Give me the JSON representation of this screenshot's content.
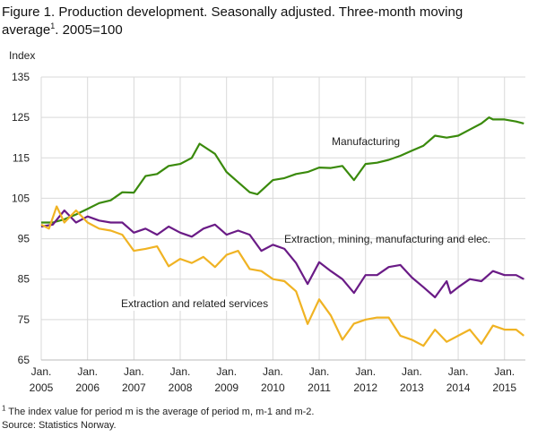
{
  "title": {
    "line1": "Figure 1. Production development. Seasonally adjusted. Three-month moving",
    "line2_pre": "average",
    "line2_sup": "1",
    "line2_post": ". 2005=100"
  },
  "footnote": {
    "sup": "1",
    "text": " The index value for period m is the average of period m, m-1 and m-2."
  },
  "source": "Source: Statistics Norway.",
  "chart_data": {
    "type": "line",
    "title": "Figure 1. Production development. Seasonally adjusted. Three-month moving average1. 2005=100",
    "ylabel": "Index",
    "xlabel": "",
    "ylim": [
      65,
      135
    ],
    "yticks": [
      65,
      75,
      85,
      95,
      105,
      115,
      125,
      135
    ],
    "xlim": [
      "2005-01",
      "2015-06"
    ],
    "xticks": [
      {
        "top": "Jan.",
        "bottom": "2005",
        "date": "2005-01"
      },
      {
        "top": "Jan.",
        "bottom": "2006",
        "date": "2006-01"
      },
      {
        "top": "Jan.",
        "bottom": "2007",
        "date": "2007-01"
      },
      {
        "top": "Jan.",
        "bottom": "2008",
        "date": "2008-01"
      },
      {
        "top": "Jan.",
        "bottom": "2009",
        "date": "2009-01"
      },
      {
        "top": "Jan.",
        "bottom": "2010",
        "date": "2010-01"
      },
      {
        "top": "Jan.",
        "bottom": "2011",
        "date": "2011-01"
      },
      {
        "top": "Jan.",
        "bottom": "2012",
        "date": "2012-01"
      },
      {
        "top": "Jan.",
        "bottom": "2013",
        "date": "2013-01"
      },
      {
        "top": "Jan.",
        "bottom": "2014",
        "date": "2014-01"
      },
      {
        "top": "Jan.",
        "bottom": "2015",
        "date": "2015-01"
      }
    ],
    "grid": true,
    "legend": "inline labels",
    "series": [
      {
        "name": "Manufacturing",
        "color": "#3a8a0c",
        "points": [
          [
            "2005-01",
            99
          ],
          [
            "2005-04",
            99
          ],
          [
            "2005-07",
            99.8
          ],
          [
            "2005-10",
            101
          ],
          [
            "2006-01",
            102.4
          ],
          [
            "2006-04",
            103.8
          ],
          [
            "2006-07",
            104.5
          ],
          [
            "2006-10",
            106.5
          ],
          [
            "2007-01",
            106.4
          ],
          [
            "2007-04",
            110.5
          ],
          [
            "2007-07",
            111
          ],
          [
            "2007-10",
            113
          ],
          [
            "2008-01",
            113.5
          ],
          [
            "2008-04",
            115
          ],
          [
            "2008-06",
            118.5
          ],
          [
            "2008-10",
            116
          ],
          [
            "2009-01",
            111.5
          ],
          [
            "2009-04",
            109
          ],
          [
            "2009-07",
            106.5
          ],
          [
            "2009-09",
            106
          ],
          [
            "2010-01",
            109.5
          ],
          [
            "2010-04",
            110
          ],
          [
            "2010-07",
            111
          ],
          [
            "2010-10",
            111.5
          ],
          [
            "2011-01",
            112.6
          ],
          [
            "2011-04",
            112.5
          ],
          [
            "2011-07",
            113
          ],
          [
            "2011-10",
            109.5
          ],
          [
            "2012-01",
            113.5
          ],
          [
            "2012-04",
            113.8
          ],
          [
            "2012-07",
            114.5
          ],
          [
            "2012-10",
            115.5
          ],
          [
            "2013-01",
            116.8
          ],
          [
            "2013-04",
            118
          ],
          [
            "2013-07",
            120.5
          ],
          [
            "2013-10",
            120
          ],
          [
            "2014-01",
            120.5
          ],
          [
            "2014-04",
            122
          ],
          [
            "2014-07",
            123.5
          ],
          [
            "2014-09",
            125
          ],
          [
            "2014-10",
            124.5
          ],
          [
            "2015-01",
            124.5
          ],
          [
            "2015-04",
            124
          ],
          [
            "2015-06",
            123.5
          ]
        ]
      },
      {
        "name": "Extraction, mining, manufacturing and elec.",
        "color": "#6a1b86",
        "points": [
          [
            "2005-01",
            98
          ],
          [
            "2005-04",
            98.5
          ],
          [
            "2005-07",
            102
          ],
          [
            "2005-10",
            99
          ],
          [
            "2006-01",
            100.5
          ],
          [
            "2006-04",
            99.5
          ],
          [
            "2006-07",
            99
          ],
          [
            "2006-10",
            99
          ],
          [
            "2007-01",
            96.5
          ],
          [
            "2007-04",
            97.5
          ],
          [
            "2007-07",
            96
          ],
          [
            "2007-10",
            98
          ],
          [
            "2008-01",
            96.5
          ],
          [
            "2008-04",
            95.5
          ],
          [
            "2008-07",
            97.5
          ],
          [
            "2008-10",
            98.5
          ],
          [
            "2009-01",
            96
          ],
          [
            "2009-04",
            97
          ],
          [
            "2009-07",
            96
          ],
          [
            "2009-10",
            92
          ],
          [
            "2010-01",
            93.5
          ],
          [
            "2010-04",
            92.5
          ],
          [
            "2010-07",
            89
          ],
          [
            "2010-10",
            83.8
          ],
          [
            "2011-01",
            89.2
          ],
          [
            "2011-04",
            87
          ],
          [
            "2011-07",
            85
          ],
          [
            "2011-10",
            81.6
          ],
          [
            "2012-01",
            86
          ],
          [
            "2012-04",
            86
          ],
          [
            "2012-07",
            88
          ],
          [
            "2012-10",
            88.5
          ],
          [
            "2013-01",
            85.4
          ],
          [
            "2013-04",
            83
          ],
          [
            "2013-07",
            80.5
          ],
          [
            "2013-10",
            84.5
          ],
          [
            "2013-11",
            81.5
          ],
          [
            "2014-01",
            83
          ],
          [
            "2014-04",
            85
          ],
          [
            "2014-07",
            84.5
          ],
          [
            "2014-10",
            87
          ],
          [
            "2015-01",
            86
          ],
          [
            "2015-04",
            86
          ],
          [
            "2015-06",
            85
          ]
        ]
      },
      {
        "name": "Extraction and related services",
        "color": "#f0b323",
        "points": [
          [
            "2005-01",
            98.5
          ],
          [
            "2005-03",
            97.5
          ],
          [
            "2005-05",
            103
          ],
          [
            "2005-07",
            99
          ],
          [
            "2005-10",
            102
          ],
          [
            "2006-01",
            99
          ],
          [
            "2006-04",
            97.5
          ],
          [
            "2006-07",
            97
          ],
          [
            "2006-10",
            96
          ],
          [
            "2007-01",
            92
          ],
          [
            "2007-04",
            92.5
          ],
          [
            "2007-07",
            93.1
          ],
          [
            "2007-10",
            88.2
          ],
          [
            "2008-01",
            90
          ],
          [
            "2008-04",
            89
          ],
          [
            "2008-07",
            90.5
          ],
          [
            "2008-10",
            88
          ],
          [
            "2009-01",
            91
          ],
          [
            "2009-04",
            92
          ],
          [
            "2009-07",
            87.5
          ],
          [
            "2009-10",
            87
          ],
          [
            "2010-01",
            85
          ],
          [
            "2010-04",
            84.5
          ],
          [
            "2010-07",
            82
          ],
          [
            "2010-10",
            73.9
          ],
          [
            "2011-01",
            80
          ],
          [
            "2011-04",
            76
          ],
          [
            "2011-07",
            70
          ],
          [
            "2011-10",
            74
          ],
          [
            "2012-01",
            75
          ],
          [
            "2012-04",
            75.5
          ],
          [
            "2012-07",
            75.5
          ],
          [
            "2012-10",
            71
          ],
          [
            "2013-01",
            70
          ],
          [
            "2013-04",
            68.5
          ],
          [
            "2013-07",
            72.5
          ],
          [
            "2013-10",
            69.5
          ],
          [
            "2014-01",
            71
          ],
          [
            "2014-04",
            72.5
          ],
          [
            "2014-07",
            69
          ],
          [
            "2014-10",
            73.5
          ],
          [
            "2015-01",
            72.5
          ],
          [
            "2015-04",
            72.5
          ],
          [
            "2015-06",
            71
          ]
        ]
      }
    ]
  }
}
